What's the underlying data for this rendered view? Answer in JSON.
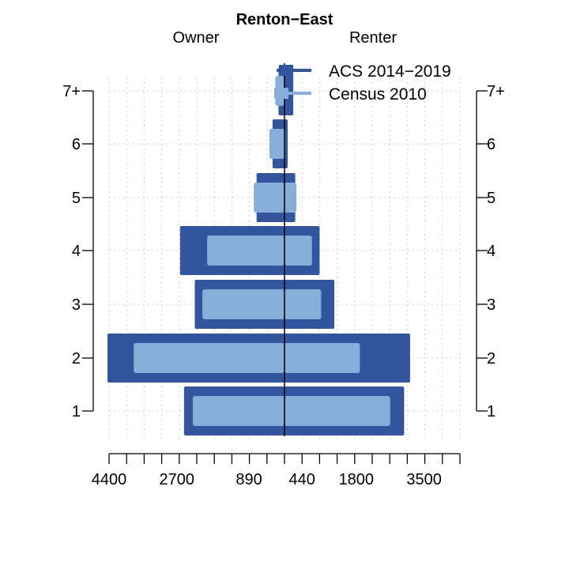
{
  "chart_data": {
    "type": "bar",
    "orientation": "horizontal-back-to-back",
    "title": "Renton−East",
    "left_label": "Owner",
    "right_label": "Renter",
    "categories": [
      "1",
      "2",
      "3",
      "4",
      "5",
      "6",
      "7+"
    ],
    "x_ticks": [
      {
        "value": -4400,
        "label": "4400"
      },
      {
        "value": -2700,
        "label": "2700"
      },
      {
        "value": -890,
        "label": "890"
      },
      {
        "value": 440,
        "label": "440"
      },
      {
        "value": 1800,
        "label": "1800"
      },
      {
        "value": 3500,
        "label": "3500"
      }
    ],
    "xlim": [
      -4400,
      4400
    ],
    "grid": true,
    "legend_position": "top-right",
    "series": [
      {
        "name": "ACS 2014−2019",
        "color": "#3355a0",
        "owner": [
          2520,
          4440,
          2250,
          2620,
          700,
          300,
          150
        ],
        "renter": [
          3000,
          3150,
          1250,
          880,
          270,
          80,
          220
        ]
      },
      {
        "name": "Census 2010",
        "color": "#87aed8",
        "owner": [
          2300,
          3780,
          2060,
          1940,
          770,
          380,
          230
        ],
        "renter": [
          2650,
          1890,
          920,
          690,
          300,
          20,
          0
        ]
      }
    ]
  }
}
